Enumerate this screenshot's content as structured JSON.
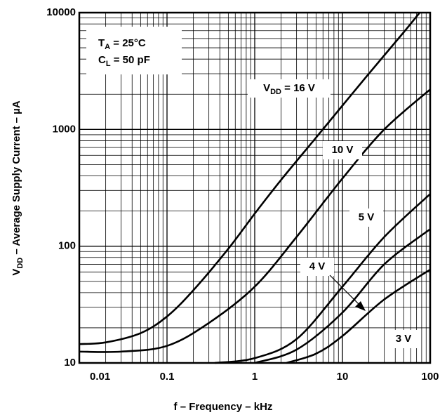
{
  "chart_data": {
    "type": "line",
    "x_label": "f – Frequency – kHz",
    "y_label": "VDD – Average Supply Current – µA",
    "y_label_subscript": "DD",
    "annotations": [
      {
        "text": "TA =  25°C",
        "subscript": "A"
      },
      {
        "text": "CL = 50 pF",
        "subscript": "L"
      }
    ],
    "xscale": "log",
    "yscale": "log",
    "grid": true,
    "xlim": [
      0.01,
      100
    ],
    "ylim": [
      10,
      10000
    ],
    "xticks": [
      0.01,
      0.1,
      1,
      10,
      100
    ],
    "yticks": [
      10,
      100,
      1000,
      10000
    ],
    "series": [
      {
        "name": "VDD = 16 V",
        "subscript": "DD",
        "color": "#000000",
        "x": [
          0.01,
          0.02,
          0.05,
          0.1,
          0.2,
          0.5,
          1,
          2,
          5,
          10,
          20,
          50,
          76
        ],
        "values": [
          14.5,
          15,
          18,
          25,
          42,
          95,
          190,
          370,
          850,
          1600,
          3000,
          6800,
          10000
        ]
      },
      {
        "name": "10 V",
        "color": "#000000",
        "x": [
          0.01,
          0.03,
          0.1,
          0.3,
          1,
          3,
          10,
          30,
          100
        ],
        "values": [
          12.5,
          12.5,
          14,
          22,
          45,
          120,
          380,
          1000,
          2200
        ]
      },
      {
        "name": "5 V",
        "color": "#000000",
        "x": [
          0.35,
          1,
          3,
          10,
          30,
          100
        ],
        "values": [
          10,
          11,
          16,
          45,
          120,
          280
        ]
      },
      {
        "name": "4 V",
        "color": "#000000",
        "x": [
          1,
          3,
          10,
          30,
          100
        ],
        "values": [
          10,
          13,
          27,
          70,
          140
        ]
      },
      {
        "name": "3 V",
        "color": "#000000",
        "x": [
          2.3,
          5,
          10,
          30,
          100
        ],
        "values": [
          10,
          12,
          17,
          35,
          63
        ]
      }
    ]
  }
}
